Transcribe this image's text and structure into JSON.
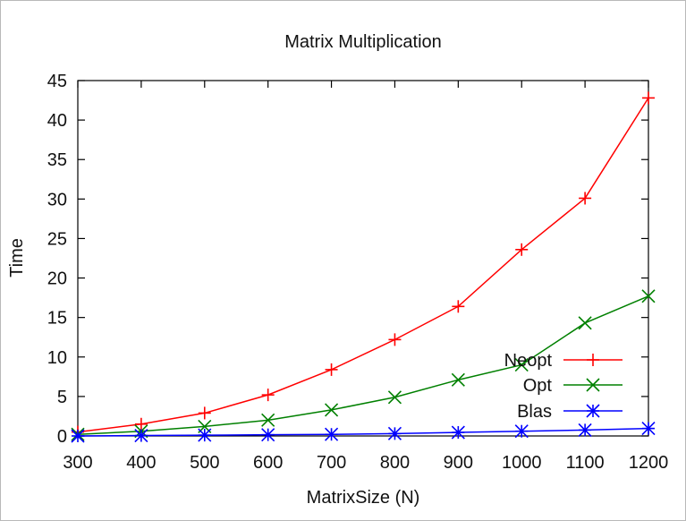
{
  "chart_data": {
    "type": "line",
    "title": "Matrix Multiplication",
    "xlabel": "MatrixSize (N)",
    "ylabel": "Time",
    "xlim": [
      300,
      1200
    ],
    "ylim": [
      0,
      45
    ],
    "xticks": [
      300,
      400,
      500,
      600,
      700,
      800,
      900,
      1000,
      1100,
      1200
    ],
    "yticks": [
      0,
      5,
      10,
      15,
      20,
      25,
      30,
      35,
      40,
      45
    ],
    "grid": false,
    "legend_position": "bottom-right",
    "series": [
      {
        "name": "Neopt",
        "color": "#ff0000",
        "marker": "plus",
        "x": [
          300,
          400,
          500,
          600,
          700,
          800,
          900,
          1000,
          1100,
          1200
        ],
        "values": [
          0.5,
          1.5,
          2.9,
          5.2,
          8.4,
          12.2,
          16.4,
          23.6,
          30.1,
          42.8
        ]
      },
      {
        "name": "Opt",
        "color": "#008000",
        "marker": "cross",
        "x": [
          300,
          400,
          500,
          600,
          700,
          800,
          900,
          1000,
          1100,
          1200
        ],
        "values": [
          0.2,
          0.6,
          1.2,
          2.0,
          3.3,
          4.9,
          7.1,
          9.0,
          14.3,
          17.7
        ]
      },
      {
        "name": "Blas",
        "color": "#0000ff",
        "marker": "star",
        "x": [
          300,
          400,
          500,
          600,
          700,
          800,
          900,
          1000,
          1100,
          1200
        ],
        "values": [
          0.0,
          0.05,
          0.1,
          0.15,
          0.2,
          0.3,
          0.45,
          0.6,
          0.75,
          0.95
        ]
      }
    ]
  }
}
